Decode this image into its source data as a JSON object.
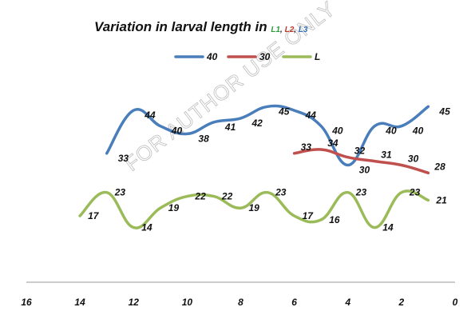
{
  "chart_data": {
    "type": "line",
    "title": "Variation in larval length in ",
    "title_parts": [
      {
        "text": "L1",
        "color": "#2e9c3a"
      },
      {
        "text": ", ",
        "color": "#222222"
      },
      {
        "text": "L2",
        "color": "#c0392b"
      },
      {
        "text": ", ",
        "color": "#222222"
      },
      {
        "text": "L3",
        "color": "#2f6db5"
      }
    ],
    "x_ticks": [
      16,
      14,
      12,
      10,
      8,
      6,
      4,
      2,
      0
    ],
    "xlim": [
      16,
      0
    ],
    "ylim": [
      0,
      60
    ],
    "x_reversed": true,
    "legend_position": "top",
    "grid": false,
    "watermark": "FOR AUTHOR USE ONLY",
    "series": [
      {
        "name": "40",
        "color": "#4a7ebb",
        "x": [
          13,
          12,
          11,
          10,
          9,
          8,
          7,
          6,
          5,
          4,
          3,
          2,
          1
        ],
        "values": [
          33,
          44,
          40,
          38,
          41,
          42,
          45,
          44,
          40,
          30,
          40,
          40,
          45
        ],
        "labels": [
          "33",
          "44",
          "40",
          "38",
          "41",
          "42",
          "45",
          "44",
          "40",
          "30",
          "40",
          "40",
          "45"
        ]
      },
      {
        "name": "30",
        "color": "#c0504d",
        "x": [
          6,
          5,
          4,
          3,
          2,
          1
        ],
        "values": [
          33,
          34,
          32,
          31,
          30,
          28
        ],
        "labels": [
          "33",
          "34",
          "32",
          "31",
          "30",
          "28"
        ]
      },
      {
        "name": "L",
        "color": "#9bbb59",
        "x": [
          14,
          13,
          12,
          11,
          10,
          9,
          8,
          7,
          6,
          5,
          4,
          3,
          2,
          1
        ],
        "values": [
          17,
          23,
          14,
          19,
          22,
          22,
          19,
          23,
          17,
          16,
          23,
          14,
          23,
          21
        ],
        "labels": [
          "17",
          "23",
          "14",
          "19",
          "22",
          "22",
          "19",
          "23",
          "17",
          "16",
          "23",
          "14",
          "23",
          "21"
        ]
      }
    ]
  }
}
